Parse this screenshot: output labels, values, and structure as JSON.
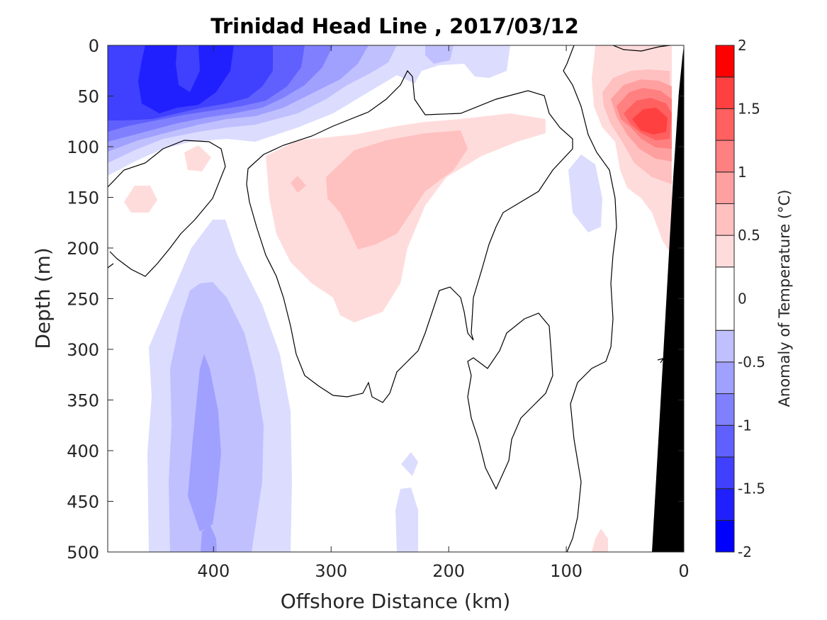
{
  "chart_data": {
    "type": "heatmap",
    "title": "Trinidad Head Line , 2017/03/12",
    "xlabel": "Offshore Distance (km)",
    "ylabel": "Depth (m)",
    "xlim": [
      490,
      0
    ],
    "ylim": [
      0,
      500
    ],
    "x_ticks": [
      "400",
      "300",
      "200",
      "100",
      "0"
    ],
    "y_ticks": [
      "0",
      "50",
      "100",
      "150",
      "200",
      "250",
      "300",
      "350",
      "400",
      "450",
      "500"
    ],
    "colorbar": {
      "label": "Anomaly of Temperature (°C)",
      "range": [
        -2,
        2
      ],
      "ticks": [
        "2",
        "1.5",
        "1",
        "0.5",
        "0",
        "-0.5",
        "-1",
        "-1.5",
        "-2"
      ],
      "levels": [
        -2,
        -1.75,
        -1.5,
        -1.25,
        -1,
        -0.75,
        -0.5,
        -0.25,
        0.25,
        0.5,
        0.75,
        1,
        1.25,
        1.5,
        1.75,
        2
      ],
      "colors": [
        "#0000ff",
        "#2020ff",
        "#4040ff",
        "#6060ff",
        "#8080ff",
        "#a0a0ff",
        "#c0c0ff",
        "#dcdcff",
        "#ffffff",
        "#ffdcdc",
        "#ffc0c0",
        "#ffa0a0",
        "#ff8080",
        "#ff6060",
        "#ff4040",
        "#ff2020",
        "#ff0000"
      ]
    },
    "features": [
      {
        "name": "cold surface core",
        "x_km": [
          490,
          300
        ],
        "depth_m": [
          0,
          110
        ],
        "min_anomaly": -1.5
      },
      {
        "name": "warm subsurface lens",
        "x_km": [
          400,
          120
        ],
        "depth_m": [
          110,
          260
        ],
        "max_anomaly": 0.75
      },
      {
        "name": "nearshore warm core",
        "x_km": [
          100,
          0
        ],
        "depth_m": [
          0,
          180
        ],
        "max_anomaly": 1.75
      },
      {
        "name": "deep cool column",
        "x_km": [
          460,
          330
        ],
        "depth_m": [
          170,
          500
        ],
        "min_anomaly": -1.0
      },
      {
        "name": "shelf / bathymetry mask",
        "x_km": [
          25,
          0
        ],
        "depth_m": [
          0,
          500
        ]
      }
    ]
  }
}
